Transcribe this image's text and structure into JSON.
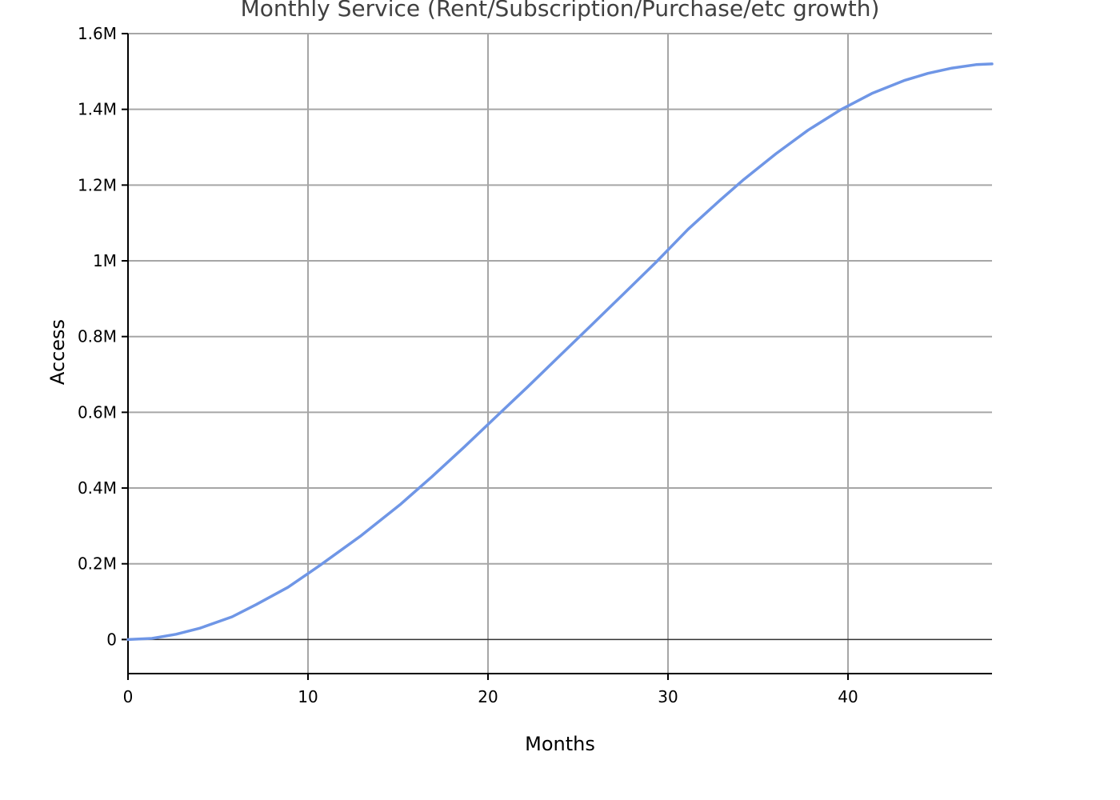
{
  "chart_data": {
    "type": "line",
    "title": "Monthly Service (Rent/Subscription/Purchase/etc growth)",
    "xlabel": "Months",
    "ylabel": "Access",
    "xlim": [
      0,
      48
    ],
    "ylim": [
      -90000,
      1600000
    ],
    "x_ticks": [
      0,
      10,
      20,
      30,
      40
    ],
    "x_tick_labels": [
      "0",
      "10",
      "20",
      "30",
      "40"
    ],
    "y_ticks": [
      0,
      200000,
      400000,
      600000,
      800000,
      1000000,
      1200000,
      1400000,
      1600000
    ],
    "y_tick_labels": [
      "0",
      "0.2M",
      "0.4M",
      "0.6M",
      "0.8M",
      "1M",
      "1.2M",
      "1.4M",
      "1.6M"
    ],
    "grid": true,
    "line_color": "#6f96e6",
    "series": [
      {
        "x": [
          0,
          1.33,
          2.67,
          4,
          5.78,
          7.11,
          8.89,
          10.67,
          12.89,
          15.11,
          16.89,
          18.67,
          20.44,
          22.22,
          24,
          25.78,
          27.56,
          29.33,
          31.11,
          32.89,
          34.22,
          36,
          37.78,
          39.56,
          41.33,
          43.11,
          44.44,
          45.78,
          47.11,
          48
        ],
        "y": [
          0,
          3000,
          14000,
          30000,
          60000,
          92000,
          138000,
          196000,
          272000,
          356000,
          430000,
          508000,
          588000,
          668000,
          750000,
          832000,
          914000,
          996000,
          1083000,
          1160000,
          1215000,
          1283000,
          1345000,
          1398000,
          1442000,
          1476000,
          1495000,
          1509000,
          1518000,
          1520000
        ]
      }
    ]
  }
}
